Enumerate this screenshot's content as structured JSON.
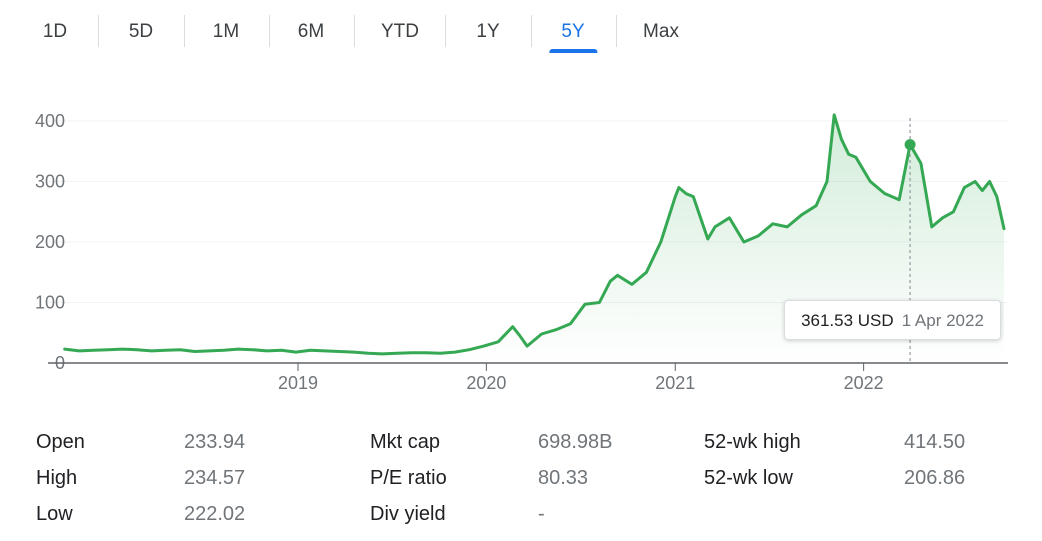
{
  "ranges": {
    "tabs": [
      {
        "label": "1D",
        "active": false
      },
      {
        "label": "5D",
        "active": false
      },
      {
        "label": "1M",
        "active": false
      },
      {
        "label": "6M",
        "active": false
      },
      {
        "label": "YTD",
        "active": false
      },
      {
        "label": "1Y",
        "active": false
      },
      {
        "label": "5Y",
        "active": true
      },
      {
        "label": "Max",
        "active": false
      }
    ]
  },
  "chart_data": {
    "type": "area",
    "x_axis_ticks": [
      "2019",
      "2020",
      "2021",
      "2022"
    ],
    "y_axis_ticks": [
      "0",
      "100",
      "200",
      "300",
      "400"
    ],
    "ylim": [
      0,
      420
    ],
    "grid": "horizontal",
    "series": [
      {
        "color": "#34a853",
        "x": [
          "2017-10-06",
          "2017-11-03",
          "2017-12-01",
          "2017-12-29",
          "2018-01-26",
          "2018-02-23",
          "2018-03-23",
          "2018-04-20",
          "2018-05-18",
          "2018-06-15",
          "2018-07-13",
          "2018-08-10",
          "2018-09-07",
          "2018-10-05",
          "2018-11-02",
          "2018-11-30",
          "2018-12-28",
          "2019-01-25",
          "2019-02-22",
          "2019-03-22",
          "2019-04-19",
          "2019-05-17",
          "2019-06-14",
          "2019-07-12",
          "2019-08-09",
          "2019-09-06",
          "2019-10-04",
          "2019-11-01",
          "2019-11-29",
          "2019-12-27",
          "2020-01-24",
          "2020-02-21",
          "2020-03-06",
          "2020-03-20",
          "2020-04-17",
          "2020-05-15",
          "2020-06-12",
          "2020-07-10",
          "2020-08-07",
          "2020-08-28",
          "2020-09-11",
          "2020-10-09",
          "2020-11-06",
          "2020-12-04",
          "2021-01-01",
          "2021-01-08",
          "2021-01-22",
          "2021-02-05",
          "2021-03-05",
          "2021-03-19",
          "2021-04-16",
          "2021-05-14",
          "2021-06-11",
          "2021-07-09",
          "2021-08-06",
          "2021-09-03",
          "2021-10-01",
          "2021-10-22",
          "2021-11-05",
          "2021-11-19",
          "2021-12-03",
          "2021-12-17",
          "2022-01-14",
          "2022-02-11",
          "2022-03-11",
          "2022-04-01",
          "2022-04-22",
          "2022-05-13",
          "2022-06-03",
          "2022-06-24",
          "2022-07-15",
          "2022-08-05",
          "2022-08-19",
          "2022-09-02",
          "2022-09-16",
          "2022-09-30"
        ],
        "y": [
          23,
          20,
          21,
          22,
          23,
          22,
          20,
          21,
          22,
          19,
          20,
          21,
          23,
          22,
          20,
          21,
          18,
          21,
          20,
          19,
          18,
          16,
          15,
          16,
          17,
          17,
          16,
          18,
          22,
          28,
          35,
          60,
          45,
          28,
          48,
          55,
          65,
          97,
          100,
          135,
          145,
          130,
          150,
          200,
          275,
          290,
          280,
          275,
          205,
          225,
          240,
          200,
          210,
          230,
          225,
          245,
          260,
          300,
          410,
          370,
          345,
          340,
          300,
          280,
          270,
          361,
          330,
          225,
          240,
          250,
          290,
          300,
          285,
          300,
          275,
          222
        ]
      }
    ]
  },
  "tooltip": {
    "price": "361.53 USD",
    "date": "1 Apr 2022"
  },
  "stats": {
    "col1": [
      {
        "label": "Open",
        "value": "233.94"
      },
      {
        "label": "High",
        "value": "234.57"
      },
      {
        "label": "Low",
        "value": "222.02"
      }
    ],
    "col2": [
      {
        "label": "Mkt cap",
        "value": "698.98B"
      },
      {
        "label": "P/E ratio",
        "value": "80.33"
      },
      {
        "label": "Div yield",
        "value": "-"
      }
    ],
    "col3": [
      {
        "label": "52-wk high",
        "value": "414.50"
      },
      {
        "label": "52-wk low",
        "value": "206.86"
      }
    ]
  }
}
